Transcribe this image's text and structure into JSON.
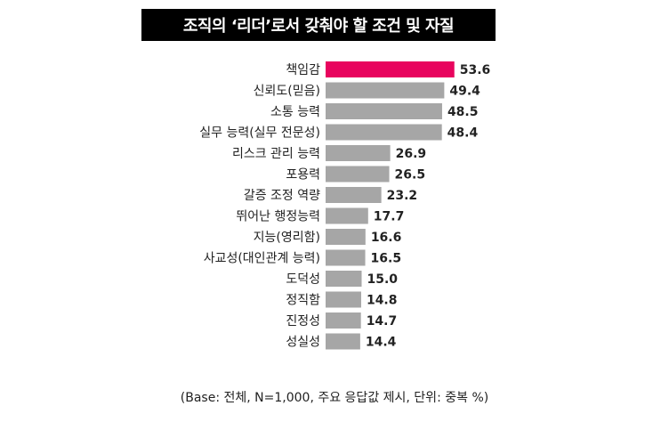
{
  "title": "조직의 ‘리더’로서 갖춰야 할 조건 및 자질",
  "footnote": "(Base: 전체, N=1,000, 주요 응답값 제시, 단위: 중복 %)",
  "colors": {
    "highlight": "#e8045e",
    "bar": "#a6a6a6",
    "title_bg": "#000000",
    "title_text": "#ffffff"
  },
  "chart_data": {
    "type": "bar",
    "orientation": "horizontal",
    "categories": [
      "책임감",
      "신뢰도(믿음)",
      "소통 능력",
      "실무 능력(실무 전문성)",
      "리스크 관리 능력",
      "포용력",
      "갈증 조정 역량",
      "뛰어난 행정능력",
      "지능(영리함)",
      "사교성(대인관계 능력)",
      "도덕성",
      "정직함",
      "진정성",
      "성실성"
    ],
    "values": [
      53.6,
      49.4,
      48.5,
      48.4,
      26.9,
      26.5,
      23.2,
      17.7,
      16.6,
      16.5,
      15.0,
      14.8,
      14.7,
      14.4
    ],
    "value_labels": [
      "53.6",
      "49.4",
      "48.5",
      "48.4",
      "26.9",
      "26.5",
      "23.2",
      "17.7",
      "16.6",
      "16.5",
      "15.0",
      "14.8",
      "14.7",
      "14.4"
    ],
    "highlight_index": 0,
    "title": "조직의 ‘리더’로서 갖춰야 할 조건 및 자질",
    "xlabel": "",
    "ylabel": "",
    "grid": false
  }
}
